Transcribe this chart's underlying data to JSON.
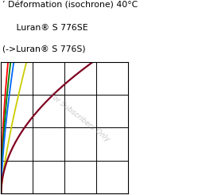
{
  "title_line1": "’ Déformation (isochrone) 40°C",
  "title_line2": "   Luran® S 776SE",
  "title_line3": "(->Luran® S 776S)",
  "watermark": "For Subscribers Only",
  "bg_color": "#ffffff",
  "plot_bg_color": "#ffffff",
  "grid_color": "#000000",
  "curves": [
    {
      "color": "#ff0000"
    },
    {
      "color": "#008000"
    },
    {
      "color": "#0066ff"
    },
    {
      "color": "#cccc00"
    },
    {
      "color": "#800020"
    }
  ]
}
